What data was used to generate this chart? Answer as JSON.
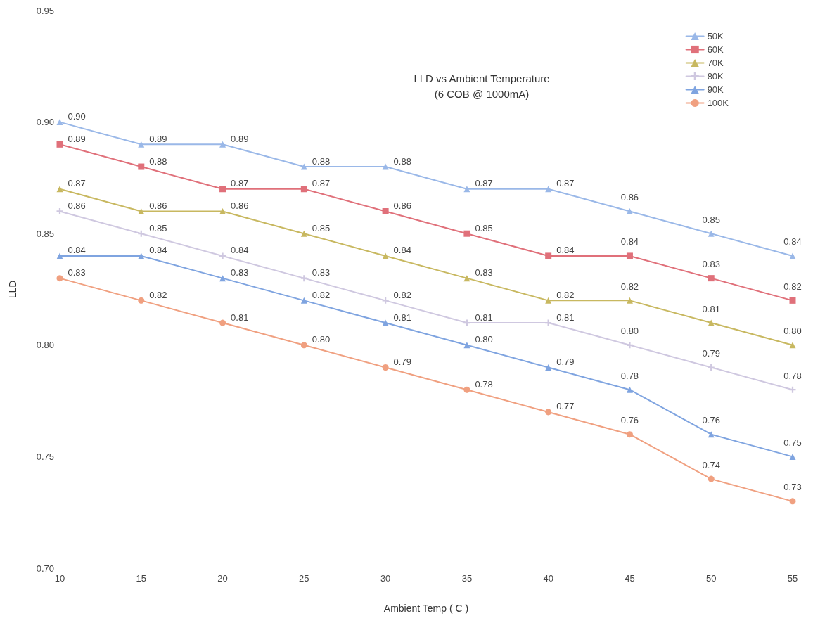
{
  "chart_data": {
    "type": "line",
    "title": "LLD vs Ambient Temperature\n(6 COB @ 1000mA)",
    "xlabel": "Ambient Temp ( C )",
    "ylabel": "LLD",
    "x": [
      10,
      15,
      20,
      25,
      30,
      35,
      40,
      45,
      50,
      55
    ],
    "series": [
      {
        "name": "50K",
        "color": "#9ab8e8",
        "marker": "triangle",
        "values": [
          0.9,
          0.89,
          0.89,
          0.88,
          0.88,
          0.87,
          0.87,
          0.86,
          0.85,
          0.84
        ],
        "value_labels": [
          "0.90",
          "0.89",
          "0.89",
          "0.88",
          "0.88",
          "0.87",
          "0.87",
          "0.86",
          "0.85",
          "0.84"
        ]
      },
      {
        "name": "60K",
        "color": "#e0707a",
        "marker": "square",
        "values": [
          0.89,
          0.88,
          0.87,
          0.87,
          0.86,
          0.85,
          0.84,
          0.84,
          0.83,
          0.82
        ],
        "value_labels": [
          "0.89",
          "0.88",
          "0.87",
          "0.87",
          "0.86",
          "0.85",
          "0.84",
          "0.84",
          "0.83",
          "0.82"
        ]
      },
      {
        "name": "70K",
        "color": "#c8b860",
        "marker": "triangle",
        "values": [
          0.87,
          0.86,
          0.86,
          0.85,
          0.84,
          0.83,
          0.82,
          0.82,
          0.81,
          0.8
        ],
        "value_labels": [
          "0.87",
          "0.86",
          "0.86",
          "0.85",
          "0.84",
          "0.83",
          "0.82",
          "0.82",
          "0.81",
          "0.80"
        ]
      },
      {
        "name": "80K",
        "color": "#cfc8e0",
        "marker": "cross",
        "values": [
          0.86,
          0.85,
          0.84,
          0.83,
          0.82,
          0.81,
          0.81,
          0.8,
          0.79,
          0.78
        ],
        "value_labels": [
          "0.86",
          "0.85",
          "0.84",
          "0.83",
          "0.82",
          "0.81",
          "0.81",
          "0.80",
          "0.79",
          "0.78"
        ]
      },
      {
        "name": "90K",
        "color": "#7fa4e0",
        "marker": "triangle",
        "values": [
          0.84,
          0.84,
          0.83,
          0.82,
          0.81,
          0.8,
          0.79,
          0.78,
          0.76,
          0.75
        ],
        "value_labels": [
          "0.84",
          "0.84",
          "0.83",
          "0.82",
          "0.81",
          "0.80",
          "0.79",
          "0.78",
          "0.76",
          "0.75"
        ]
      },
      {
        "name": "100K",
        "color": "#f0a080",
        "marker": "circle",
        "values": [
          0.83,
          0.82,
          0.81,
          0.8,
          0.79,
          0.78,
          0.77,
          0.76,
          0.74,
          0.73
        ],
        "value_labels": [
          "0.83",
          "0.82",
          "0.81",
          "0.80",
          "0.79",
          "0.78",
          "0.77",
          "0.76",
          "0.74",
          "0.73"
        ]
      }
    ],
    "xlim": [
      10,
      55
    ],
    "xticks": [
      10,
      15,
      20,
      25,
      30,
      35,
      40,
      45,
      50,
      55
    ],
    "ylim": [
      0.7,
      0.95
    ],
    "yticks": [
      {
        "value": 0.7,
        "label": "0.70"
      },
      {
        "value": 0.75,
        "label": "0.75"
      },
      {
        "value": 0.8,
        "label": "0.80"
      },
      {
        "value": 0.85,
        "label": "0.85"
      },
      {
        "value": 0.9,
        "label": "0.90"
      },
      {
        "value": 0.95,
        "label": "0.95"
      }
    ],
    "grid": false,
    "legend": "top right",
    "line_style": "solid"
  }
}
